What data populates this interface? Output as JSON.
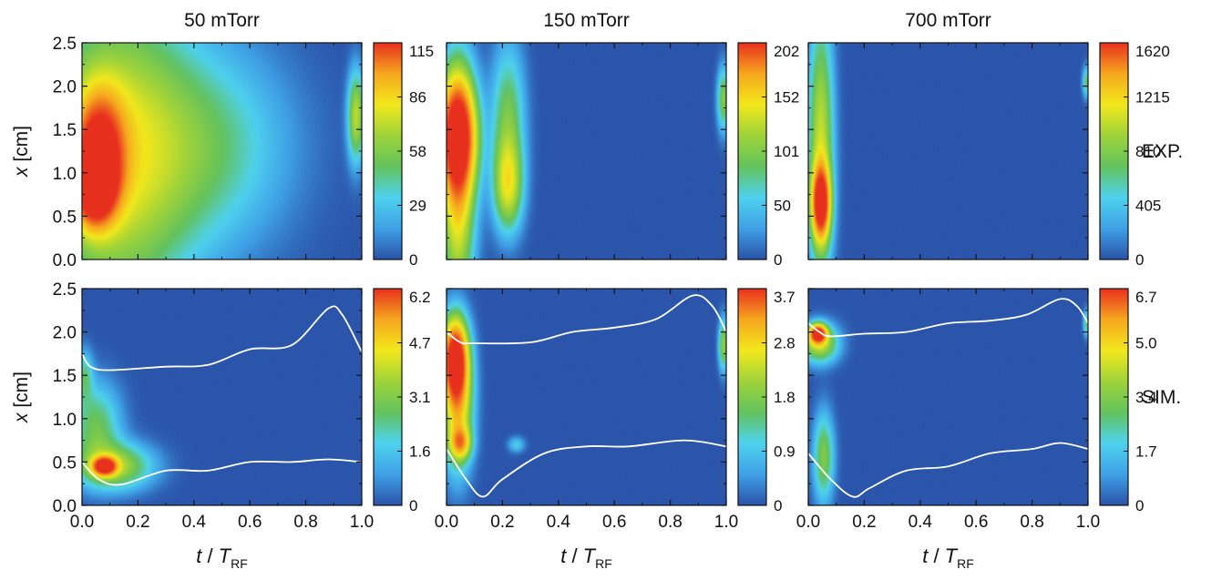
{
  "chart_data": {
    "type": "heatmap",
    "columns": [
      "50 mTorr",
      "150 mTorr",
      "700 mTorr"
    ],
    "rows": [
      "EXP.",
      "SIM."
    ],
    "xlabel": {
      "italic_main": "t",
      "slash": " / ",
      "italic_T": "T",
      "sub": "RF"
    },
    "ylabel": {
      "italic": "x",
      "rest": " [cm]"
    },
    "x_ticks": [
      "0.0",
      "0.2",
      "0.4",
      "0.6",
      "0.8",
      "1.0"
    ],
    "y_ticks": [
      "0.0",
      "0.5",
      "1.0",
      "1.5",
      "2.0",
      "2.5"
    ],
    "xlim": [
      0,
      1
    ],
    "ylim": [
      0,
      2.5
    ],
    "colormap": [
      "#2a52a8",
      "#3fa0e6",
      "#4ed2ee",
      "#63c25c",
      "#9ed33a",
      "#f1e81c",
      "#f6a71e",
      "#e8301e"
    ],
    "panels": [
      {
        "row": "EXP.",
        "column": "50 mTorr",
        "colorbar_ticks": [
          "0",
          "29",
          "58",
          "86",
          "115"
        ],
        "blobs": [
          {
            "t": 0.045,
            "x": 0.85,
            "st": 0.05,
            "sx": 0.3,
            "v": 1.0
          },
          {
            "t": 0.06,
            "x": 1.3,
            "st": 0.06,
            "sx": 0.45,
            "v": 0.72
          },
          {
            "t": 0.12,
            "x": 1.2,
            "st": 0.18,
            "sx": 1.2,
            "v": 0.48
          },
          {
            "t": 0.45,
            "x": 1.3,
            "st": 0.2,
            "sx": 0.8,
            "v": 0.22
          },
          {
            "t": 0.98,
            "x": 1.65,
            "st": 0.02,
            "sx": 0.35,
            "v": 0.42
          }
        ],
        "boundaries": []
      },
      {
        "row": "EXP.",
        "column": "150 mTorr",
        "colorbar_ticks": [
          "0",
          "50",
          "101",
          "152",
          "202"
        ],
        "blobs": [
          {
            "t": 0.04,
            "x": 1.45,
            "st": 0.045,
            "sx": 0.45,
            "v": 1.0
          },
          {
            "t": 0.04,
            "x": 0.8,
            "st": 0.04,
            "sx": 0.9,
            "v": 0.55
          },
          {
            "t": 0.22,
            "x": 0.85,
            "st": 0.035,
            "sx": 0.35,
            "v": 0.42
          },
          {
            "t": 0.22,
            "x": 1.6,
            "st": 0.04,
            "sx": 0.6,
            "v": 0.3
          },
          {
            "t": 0.99,
            "x": 1.85,
            "st": 0.015,
            "sx": 0.25,
            "v": 0.32
          }
        ],
        "boundaries": []
      },
      {
        "row": "EXP.",
        "column": "700 mTorr",
        "colorbar_ticks": [
          "0",
          "405",
          "810",
          "1215",
          "1620"
        ],
        "blobs": [
          {
            "t": 0.045,
            "x": 0.65,
            "st": 0.022,
            "sx": 0.28,
            "v": 1.0
          },
          {
            "t": 0.045,
            "x": 1.3,
            "st": 0.03,
            "sx": 1.0,
            "v": 0.45
          },
          {
            "t": 0.995,
            "x": 2.05,
            "st": 0.01,
            "sx": 0.12,
            "v": 0.25
          }
        ],
        "boundaries": []
      },
      {
        "row": "SIM.",
        "column": "50 mTorr",
        "colorbar_ticks": [
          "0",
          "1.6",
          "3.1",
          "4.7",
          "6.2"
        ],
        "blobs": [
          {
            "t": 0.08,
            "x": 0.45,
            "st": 0.028,
            "sx": 0.07,
            "v": 1.0
          },
          {
            "t": 0.12,
            "x": 0.45,
            "st": 0.09,
            "sx": 0.18,
            "v": 0.38
          },
          {
            "t": 0.05,
            "x": 0.9,
            "st": 0.06,
            "sx": 0.35,
            "v": 0.28
          },
          {
            "t": 0.01,
            "x": 1.5,
            "st": 0.02,
            "sx": 0.2,
            "v": 0.2
          }
        ],
        "boundaries": [
          [
            [
              0.0,
              1.75
            ],
            [
              0.03,
              1.6
            ],
            [
              0.1,
              1.56
            ],
            [
              0.3,
              1.6
            ],
            [
              0.45,
              1.62
            ],
            [
              0.6,
              1.8
            ],
            [
              0.75,
              1.85
            ],
            [
              0.88,
              2.27
            ],
            [
              0.93,
              2.2
            ],
            [
              1.0,
              1.77
            ]
          ],
          [
            [
              0.0,
              0.5
            ],
            [
              0.06,
              0.3
            ],
            [
              0.14,
              0.24
            ],
            [
              0.3,
              0.4
            ],
            [
              0.45,
              0.4
            ],
            [
              0.6,
              0.5
            ],
            [
              0.75,
              0.5
            ],
            [
              0.88,
              0.53
            ],
            [
              1.0,
              0.5
            ]
          ]
        ]
      },
      {
        "row": "SIM.",
        "column": "150 mTorr",
        "colorbar_ticks": [
          "0",
          "0.9",
          "1.8",
          "2.8",
          "3.7"
        ],
        "blobs": [
          {
            "t": 0.03,
            "x": 1.7,
            "st": 0.03,
            "sx": 0.3,
            "v": 1.0
          },
          {
            "t": 0.04,
            "x": 1.2,
            "st": 0.035,
            "sx": 0.5,
            "v": 0.62
          },
          {
            "t": 0.05,
            "x": 0.72,
            "st": 0.025,
            "sx": 0.12,
            "v": 0.5
          },
          {
            "t": 0.25,
            "x": 0.7,
            "st": 0.02,
            "sx": 0.06,
            "v": 0.15
          },
          {
            "t": 0.99,
            "x": 1.85,
            "st": 0.012,
            "sx": 0.2,
            "v": 0.35
          }
        ],
        "boundaries": [
          [
            [
              0.0,
              2.0
            ],
            [
              0.05,
              1.88
            ],
            [
              0.1,
              1.87
            ],
            [
              0.3,
              1.88
            ],
            [
              0.45,
              2.0
            ],
            [
              0.6,
              2.05
            ],
            [
              0.75,
              2.15
            ],
            [
              0.88,
              2.42
            ],
            [
              0.95,
              2.3
            ],
            [
              1.0,
              2.0
            ]
          ],
          [
            [
              0.0,
              0.65
            ],
            [
              0.07,
              0.3
            ],
            [
              0.13,
              0.1
            ],
            [
              0.2,
              0.3
            ],
            [
              0.35,
              0.6
            ],
            [
              0.5,
              0.68
            ],
            [
              0.65,
              0.68
            ],
            [
              0.85,
              0.75
            ],
            [
              1.0,
              0.68
            ]
          ]
        ]
      },
      {
        "row": "SIM.",
        "column": "700 mTorr",
        "colorbar_ticks": [
          "0",
          "1.7",
          "3.4",
          "5.0",
          "6.7"
        ],
        "blobs": [
          {
            "t": 0.035,
            "x": 1.98,
            "st": 0.02,
            "sx": 0.07,
            "v": 1.0
          },
          {
            "t": 0.04,
            "x": 1.87,
            "st": 0.045,
            "sx": 0.15,
            "v": 0.45
          },
          {
            "t": 0.055,
            "x": 0.55,
            "st": 0.025,
            "sx": 0.35,
            "v": 0.32
          },
          {
            "t": 0.995,
            "x": 2.1,
            "st": 0.008,
            "sx": 0.1,
            "v": 0.25
          }
        ],
        "boundaries": [
          [
            [
              0.0,
              2.1
            ],
            [
              0.04,
              2.0
            ],
            [
              0.08,
              1.95
            ],
            [
              0.2,
              1.98
            ],
            [
              0.35,
              2.0
            ],
            [
              0.5,
              2.1
            ],
            [
              0.65,
              2.13
            ],
            [
              0.78,
              2.2
            ],
            [
              0.9,
              2.38
            ],
            [
              0.96,
              2.3
            ],
            [
              1.0,
              2.1
            ]
          ],
          [
            [
              0.0,
              0.6
            ],
            [
              0.08,
              0.3
            ],
            [
              0.16,
              0.1
            ],
            [
              0.22,
              0.2
            ],
            [
              0.35,
              0.4
            ],
            [
              0.5,
              0.45
            ],
            [
              0.65,
              0.6
            ],
            [
              0.8,
              0.65
            ],
            [
              0.9,
              0.72
            ],
            [
              1.0,
              0.65
            ]
          ]
        ]
      }
    ]
  }
}
